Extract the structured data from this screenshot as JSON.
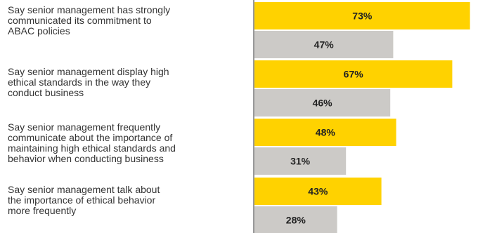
{
  "chart_data": {
    "type": "bar",
    "orientation": "horizontal",
    "categories": [
      [
        "Say senior management has strongly",
        "communicated its commitment to",
        "ABAC policies"
      ],
      [
        "Say senior management display high",
        "ethical standards in the way they",
        "conduct business"
      ],
      [
        "Say senior management frequently",
        "communicate about the importance of",
        "maintaining high ethical standards and",
        "behavior when conducting business"
      ],
      [
        "Say senior management talk about",
        "the importance of ethical behavior",
        "more frequently"
      ]
    ],
    "series": [
      {
        "color": "#FFD200",
        "values": [
          73,
          67,
          48,
          43
        ],
        "value_labels": [
          "73%",
          "67%",
          "48%",
          "43%"
        ]
      },
      {
        "color": "#CCCAC7",
        "values": [
          47,
          46,
          31,
          28
        ],
        "value_labels": [
          "47%",
          "46%",
          "31%",
          "28%"
        ]
      }
    ],
    "unit": "%",
    "xlim": [
      0,
      100
    ],
    "grid": false,
    "legend": "none",
    "axis_color": "#333333"
  }
}
